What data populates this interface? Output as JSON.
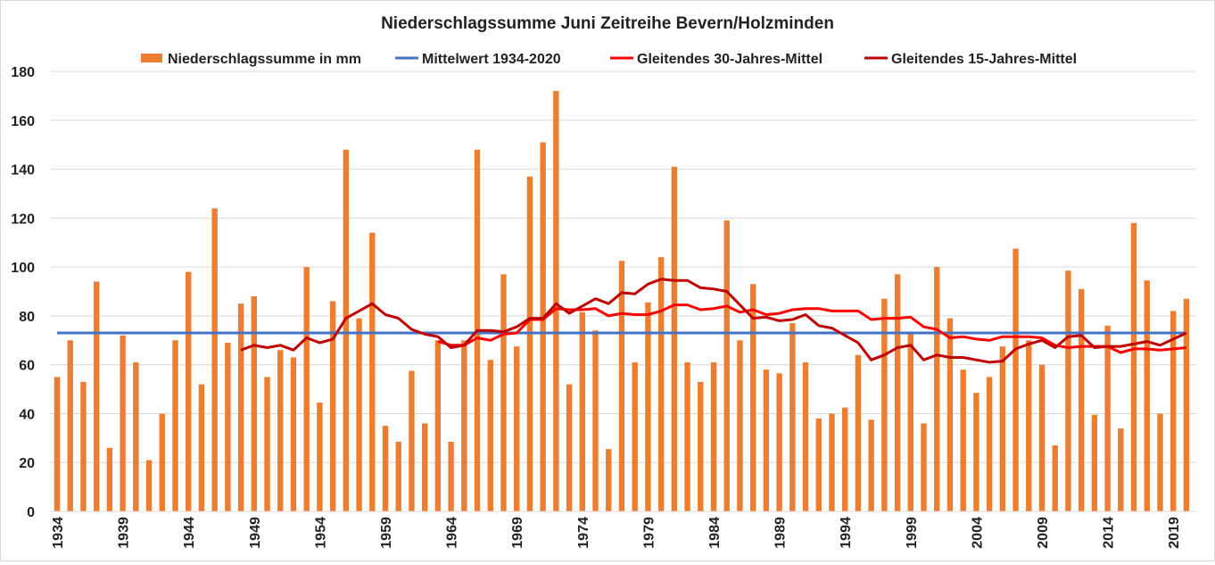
{
  "chart_data": {
    "type": "bar",
    "title": "Niederschlagssumme Juni Zeitreihe Bevern/Holzminden",
    "xlabel": "",
    "ylabel": "",
    "ylim": [
      0,
      180
    ],
    "yticks": [
      0,
      20,
      40,
      60,
      80,
      100,
      120,
      140,
      160,
      180
    ],
    "xtick_labels": [
      "1934",
      "1939",
      "1944",
      "1949",
      "1954",
      "1959",
      "1964",
      "1969",
      "1974",
      "1979",
      "1984",
      "1989",
      "1994",
      "1999",
      "2004",
      "2009",
      "2014",
      "2019"
    ],
    "grid": true,
    "legend_position": "top",
    "years": [
      1934,
      1935,
      1936,
      1937,
      1938,
      1939,
      1940,
      1941,
      1942,
      1943,
      1944,
      1945,
      1946,
      1947,
      1948,
      1949,
      1950,
      1951,
      1952,
      1953,
      1954,
      1955,
      1956,
      1957,
      1958,
      1959,
      1960,
      1961,
      1962,
      1963,
      1964,
      1965,
      1966,
      1967,
      1968,
      1969,
      1970,
      1971,
      1972,
      1973,
      1974,
      1975,
      1976,
      1977,
      1978,
      1979,
      1980,
      1981,
      1982,
      1983,
      1984,
      1985,
      1986,
      1987,
      1988,
      1989,
      1990,
      1991,
      1992,
      1993,
      1994,
      1995,
      1996,
      1997,
      1998,
      1999,
      2000,
      2001,
      2002,
      2003,
      2004,
      2005,
      2006,
      2007,
      2008,
      2009,
      2010,
      2011,
      2012,
      2013,
      2014,
      2015,
      2016,
      2017,
      2018,
      2019,
      2020
    ],
    "series": [
      {
        "name": "Niederschlagssumme in mm",
        "kind": "bar",
        "color": "#ed7d31",
        "values": [
          55,
          70,
          53,
          94,
          26,
          72,
          61,
          21,
          40,
          70,
          98,
          52,
          124,
          69,
          85,
          88,
          55,
          66,
          63,
          100,
          44.5,
          86,
          148,
          79,
          114,
          35,
          28.5,
          57.5,
          36,
          70,
          28.5,
          70,
          148,
          62,
          97,
          67.5,
          137,
          151,
          172,
          52,
          81.5,
          74,
          25.5,
          102.5,
          61,
          85.5,
          104,
          141,
          61,
          53,
          61,
          119,
          70,
          93,
          58,
          56.5,
          77,
          61,
          38,
          40,
          42.5,
          64,
          37.5,
          87,
          97,
          73,
          36,
          100,
          79,
          58,
          48.5,
          55,
          67.5,
          107.5,
          70,
          60,
          27,
          98.5,
          91,
          39.5,
          76,
          34,
          118,
          94.5,
          40,
          82,
          87
        ]
      },
      {
        "name": "Mittelwert 1934-2020",
        "kind": "line",
        "color": "#4472c4",
        "constant": 73
      },
      {
        "name": "Gleitendes 30-Jahres-Mittel",
        "kind": "line",
        "color": "#ff0000",
        "start_year": 1963,
        "values": [
          69.5,
          68,
          68,
          71,
          70,
          72.5,
          73,
          78.5,
          78.5,
          83,
          82.5,
          82.5,
          83,
          80,
          81,
          80.5,
          80.5,
          82,
          84.5,
          84.5,
          82.5,
          83,
          84,
          81.5,
          82.5,
          80.5,
          81,
          82.5,
          83,
          83,
          82,
          82,
          82,
          78.5,
          79,
          79,
          79.5,
          75.5,
          74.5,
          71,
          71.5,
          70.5,
          70,
          71.5,
          71.5,
          71.5,
          71,
          68,
          67,
          67.5,
          67.5,
          67.5,
          65,
          66.5,
          66.5,
          66,
          66.5,
          67
        ]
      },
      {
        "name": "Gleitendes 15-Jahres-Mittel",
        "kind": "line",
        "color": "#c00000",
        "start_year": 1948,
        "values": [
          66,
          68,
          67,
          68,
          66,
          71,
          69,
          70.5,
          79,
          82,
          85,
          80.5,
          79,
          74.5,
          72.5,
          71.5,
          67,
          68,
          74,
          74,
          73.5,
          75.5,
          79,
          79,
          85,
          81,
          84,
          87,
          85,
          89.5,
          89,
          93,
          95,
          94.5,
          94.5,
          91.5,
          91,
          90,
          84.5,
          79,
          79.5,
          78,
          78.5,
          80.5,
          76,
          75,
          72,
          69,
          62,
          64,
          67,
          68,
          62,
          64,
          63,
          63,
          62,
          61,
          61.5,
          66.5,
          68.5,
          70,
          67,
          71.5,
          72,
          67,
          67.5,
          67.5,
          68.5,
          69.5,
          68,
          70.5,
          73
        ]
      }
    ]
  }
}
